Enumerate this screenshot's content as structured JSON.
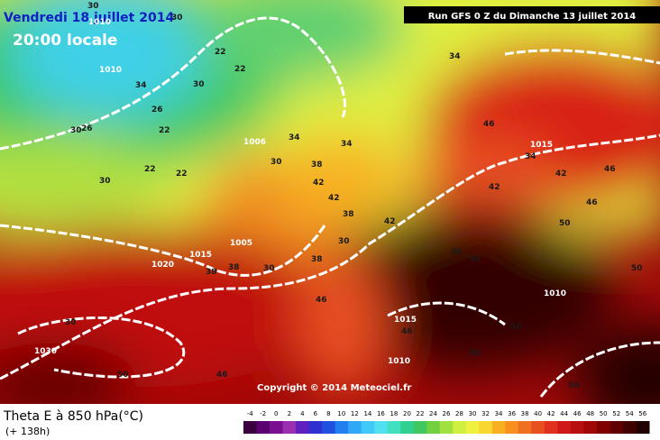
{
  "header": {
    "date": "Vendredi 18 juillet 2014",
    "time": "20:00 locale",
    "run": "Run GFS 0 Z du Dimanche 13 juillet 2014"
  },
  "copyright": "Copyright © 2014 Meteociel.fr",
  "legend": {
    "title": "Theta E à 850 hPa(°C)",
    "lead": "(+ 138h)",
    "scale": {
      "values": [
        -4,
        -2,
        0,
        2,
        4,
        6,
        8,
        10,
        12,
        14,
        16,
        18,
        20,
        22,
        24,
        26,
        28,
        30,
        32,
        34,
        36,
        38,
        40,
        42,
        44,
        46,
        48,
        50,
        52,
        54,
        56
      ],
      "colors": [
        "#3a0040",
        "#5a0070",
        "#7a1090",
        "#9a30b0",
        "#6020c0",
        "#3030d0",
        "#2050e0",
        "#2080f0",
        "#30a8f8",
        "#40c8f8",
        "#50e0f0",
        "#40e0c0",
        "#30d090",
        "#40c860",
        "#70d040",
        "#a0e040",
        "#d0f040",
        "#f0f040",
        "#f8d830",
        "#f8b020",
        "#f89020",
        "#f07020",
        "#e85020",
        "#e03020",
        "#d01818",
        "#b81010",
        "#a00808",
        "#800000",
        "#600000",
        "#400000",
        "#200000"
      ]
    }
  },
  "map": {
    "labels": [
      "1010",
      "30",
      "30",
      "22",
      "22",
      "1010",
      "34",
      "30",
      "26",
      "22",
      "30",
      "22",
      "1006",
      "34",
      "26",
      "22",
      "30",
      "34",
      "38",
      "42",
      "38",
      "34",
      "42",
      "46",
      "30",
      "1005",
      "38",
      "30",
      "1015",
      "38",
      "38",
      "42",
      "50",
      "46",
      "50",
      "1010",
      "50",
      "1015",
      "50",
      "1010",
      "50",
      "1030",
      "30",
      "46",
      "50",
      "1020",
      "1015",
      "34",
      "42",
      "46",
      "50",
      "30",
      "50",
      "46",
      "42",
      "46"
    ]
  }
}
